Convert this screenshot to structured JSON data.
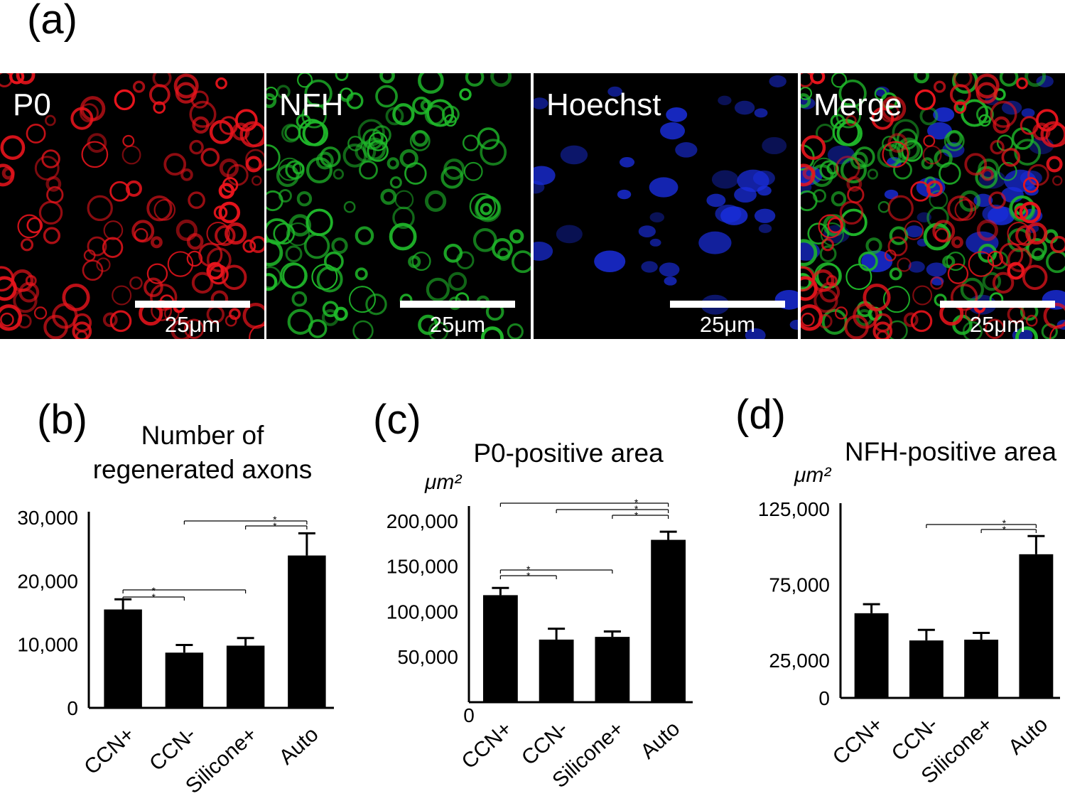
{
  "panel_a": {
    "label": "(a)",
    "images": [
      {
        "stain": "P0",
        "scale": "25μm",
        "color": "#e8141c"
      },
      {
        "stain": "NFH",
        "scale": "25μm",
        "color": "#1fb82a"
      },
      {
        "stain": "Hoechst",
        "scale": "25μm",
        "color": "#1a2ee0"
      },
      {
        "stain": "Merge",
        "scale": "25μm",
        "color": "merge"
      }
    ]
  },
  "chart_data": [
    {
      "panel": "(b)",
      "type": "bar",
      "title": "Number of regenerated axons",
      "title_lines": [
        "Number of",
        "regenerated axons"
      ],
      "unit": "",
      "categories": [
        "CCN+",
        "CCN-",
        "Silicone+",
        "Auto"
      ],
      "values": [
        15500,
        8700,
        9800,
        24000
      ],
      "errors": [
        1600,
        1200,
        1200,
        3500
      ],
      "ylim": [
        0,
        30000
      ],
      "ticks": [
        0,
        10000,
        20000,
        30000
      ],
      "tick_labels": [
        "0",
        "10,000",
        "20,000",
        "30,000"
      ],
      "significance": [
        {
          "from": 0,
          "to": 1,
          "label": "* *"
        },
        {
          "from": 0,
          "to": 2,
          "label": ""
        },
        {
          "from": 2,
          "to": 3,
          "label": "* *"
        },
        {
          "from": 1,
          "to": 3,
          "label": ""
        }
      ],
      "bar_color": "#000000"
    },
    {
      "panel": "(c)",
      "type": "bar",
      "title": "P0-positive area",
      "title_lines": [
        "P0-positive area"
      ],
      "unit": "μm²",
      "categories": [
        "CCN+",
        "CCN-",
        "Silicone+",
        "Auto"
      ],
      "values": [
        118000,
        69000,
        72000,
        179000
      ],
      "errors": [
        8000,
        12000,
        6000,
        9000
      ],
      "ylim": [
        0,
        210000
      ],
      "ticks": [
        0,
        50000,
        100000,
        150000,
        200000
      ],
      "tick_labels": [
        "0",
        "50,000",
        "100,000",
        "150,000",
        "200,000"
      ],
      "significance": [
        {
          "from": 0,
          "to": 1,
          "label": "* *"
        },
        {
          "from": 0,
          "to": 2,
          "label": ""
        },
        {
          "from": 2,
          "to": 3,
          "label": "* * *"
        },
        {
          "from": 1,
          "to": 3,
          "label": ""
        },
        {
          "from": 0,
          "to": 3,
          "label": ""
        }
      ],
      "bar_color": "#000000"
    },
    {
      "panel": "(d)",
      "type": "bar",
      "title": "NFH-positive area",
      "title_lines": [
        "NFH-positive area"
      ],
      "unit": "μm²",
      "categories": [
        "CCN+",
        "CCN-",
        "Silicone+",
        "Auto"
      ],
      "values": [
        56000,
        38000,
        38500,
        95000
      ],
      "errors": [
        6000,
        7000,
        4500,
        12000
      ],
      "ylim": [
        0,
        125000
      ],
      "ticks": [
        0,
        25000,
        75000,
        125000
      ],
      "tick_labels": [
        "0",
        "25,000",
        "75,000",
        "125,000"
      ],
      "significance": [
        {
          "from": 2,
          "to": 3,
          "label": "* *"
        },
        {
          "from": 1,
          "to": 3,
          "label": ""
        }
      ],
      "bar_color": "#000000"
    }
  ]
}
